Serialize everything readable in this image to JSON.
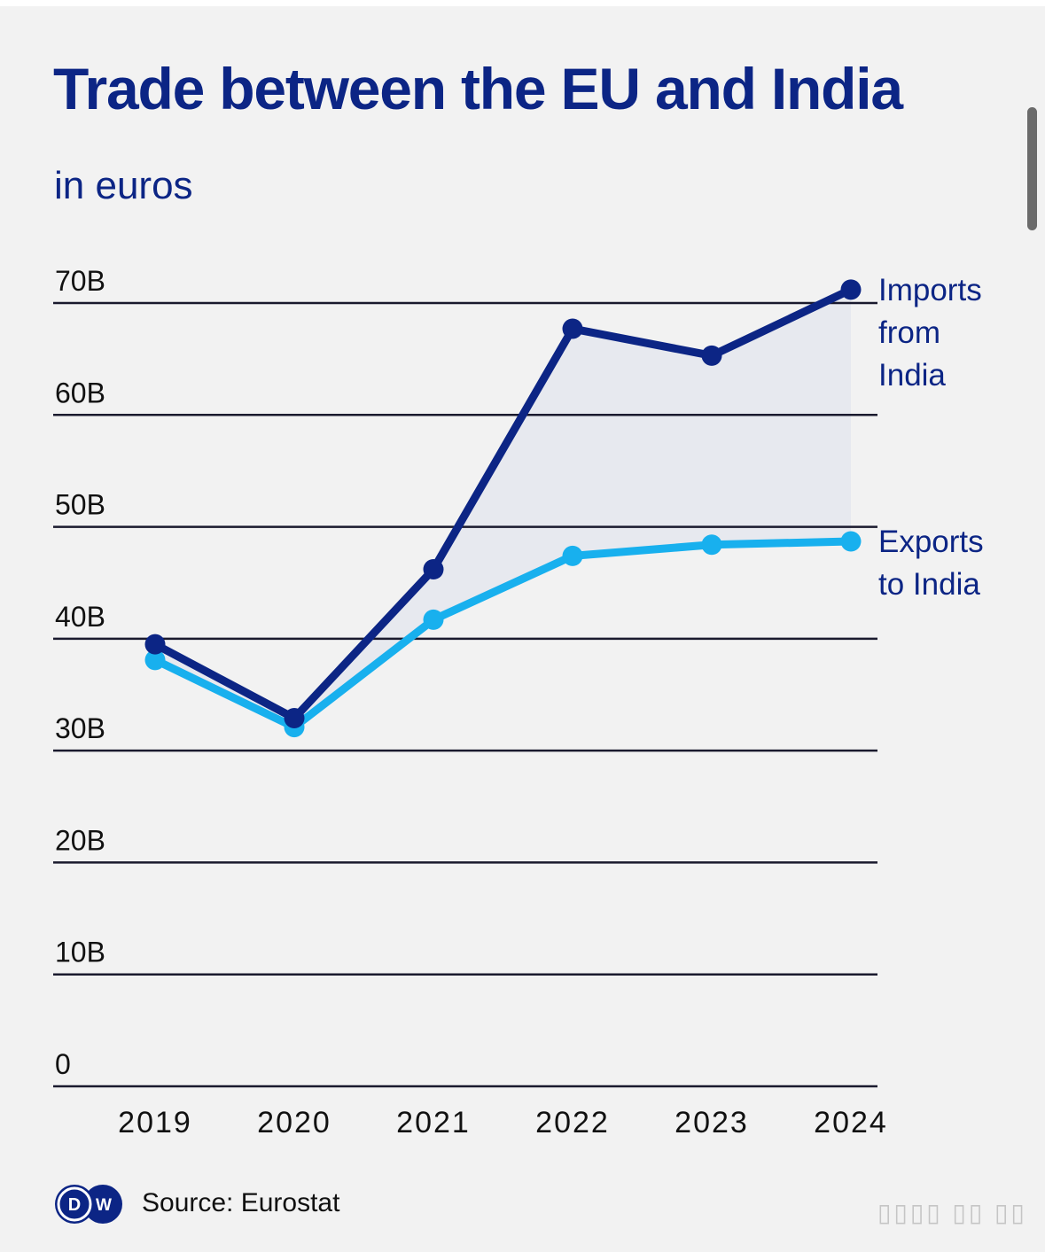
{
  "header": {
    "title": "Trade between the EU and India",
    "subtitle": "in euros"
  },
  "footer": {
    "logo": "dw-logo",
    "logo_text": "DW",
    "source": "Source: Eurostat",
    "watermark": "▯▯▯▯ ▯▯ ▯▯"
  },
  "chart_data": {
    "type": "line",
    "title": "Trade between the EU and India",
    "subtitle": "in euros",
    "xlabel": "",
    "ylabel": "",
    "x": [
      "2019",
      "2020",
      "2021",
      "2022",
      "2023",
      "2024"
    ],
    "yticks": [
      0,
      10,
      20,
      30,
      40,
      50,
      60,
      70
    ],
    "ytick_labels": [
      "0",
      "10B",
      "20B",
      "30B",
      "40B",
      "50B",
      "60B",
      "70B"
    ],
    "ylim": [
      0,
      70
    ],
    "grid": true,
    "legend": "inline-right",
    "series": [
      {
        "name": "Imports from India",
        "label_lines": [
          "Imports",
          "from",
          "India"
        ],
        "color": "#0c2585",
        "values": [
          39.5,
          32.9,
          46.2,
          67.7,
          65.3,
          71.2
        ]
      },
      {
        "name": "Exports to India",
        "label_lines": [
          "Exports",
          "to India"
        ],
        "color": "#18b0ee",
        "values": [
          38.1,
          32.1,
          41.7,
          47.4,
          48.4,
          48.7
        ]
      }
    ],
    "shaded_area": "between imports and exports",
    "colors": {
      "gridline": "#1a1a2e",
      "tick_text": "#111111",
      "area_fill": "#e6e8ee",
      "label_text": "#0c2585"
    }
  }
}
